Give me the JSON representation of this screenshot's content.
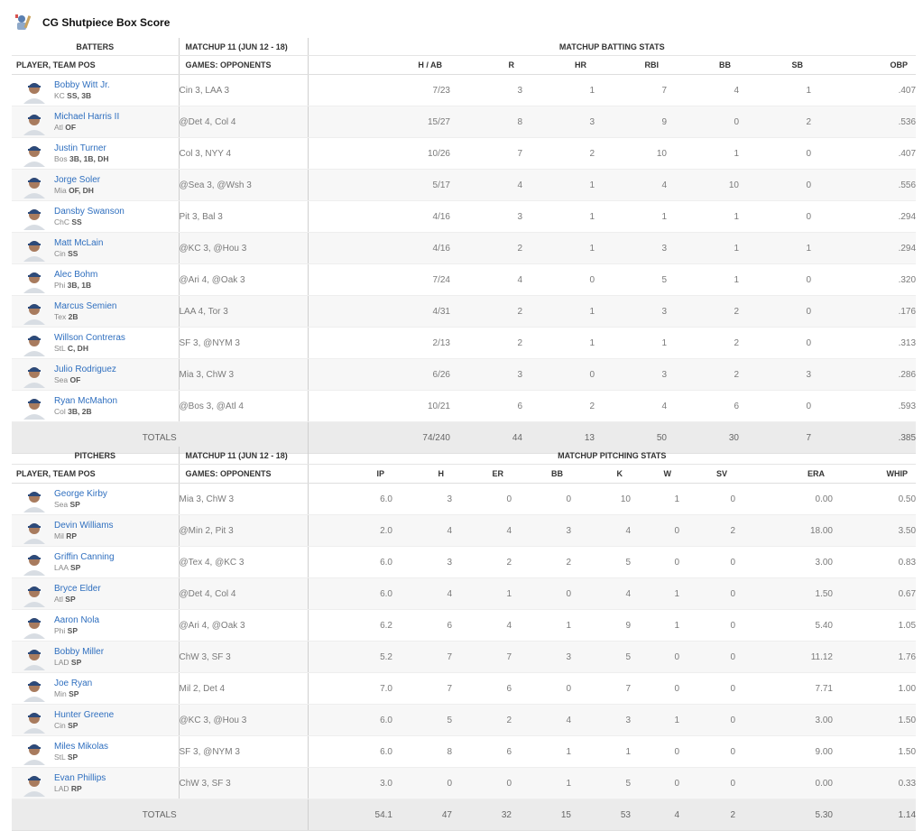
{
  "header": {
    "team_name": "CG Shutpiece Box Score",
    "logo_icon": "team-logo-icon"
  },
  "batting": {
    "group_left": "BATTERS",
    "group_mid": "MATCHUP 11 (JUN 12 - 18)",
    "group_right": "MATCHUP BATTING STATS",
    "col_player": "PLAYER, TEAM POS",
    "col_opp": "GAMES: OPPONENTS",
    "stat_headers": [
      "H / AB",
      "R",
      "HR",
      "RBI",
      "BB",
      "SB",
      "OBP"
    ],
    "rows": [
      {
        "name": "Bobby Witt Jr.",
        "team": "KC",
        "pos": "SS, 3B",
        "opp": "Cin 3, LAA 3",
        "stats": [
          "7/23",
          "3",
          "1",
          "7",
          "4",
          "1",
          ".407"
        ]
      },
      {
        "name": "Michael Harris II",
        "team": "Atl",
        "pos": "OF",
        "opp": "@Det 4, Col 4",
        "stats": [
          "15/27",
          "8",
          "3",
          "9",
          "0",
          "2",
          ".536"
        ]
      },
      {
        "name": "Justin Turner",
        "team": "Bos",
        "pos": "3B, 1B, DH",
        "opp": "Col 3, NYY 4",
        "stats": [
          "10/26",
          "7",
          "2",
          "10",
          "1",
          "0",
          ".407"
        ]
      },
      {
        "name": "Jorge Soler",
        "team": "Mia",
        "pos": "OF, DH",
        "opp": "@Sea 3, @Wsh 3",
        "stats": [
          "5/17",
          "4",
          "1",
          "4",
          "10",
          "0",
          ".556"
        ]
      },
      {
        "name": "Dansby Swanson",
        "team": "ChC",
        "pos": "SS",
        "opp": "Pit 3, Bal 3",
        "stats": [
          "4/16",
          "3",
          "1",
          "1",
          "1",
          "0",
          ".294"
        ]
      },
      {
        "name": "Matt McLain",
        "team": "Cin",
        "pos": "SS",
        "opp": "@KC 3, @Hou 3",
        "stats": [
          "4/16",
          "2",
          "1",
          "3",
          "1",
          "1",
          ".294"
        ]
      },
      {
        "name": "Alec Bohm",
        "team": "Phi",
        "pos": "3B, 1B",
        "opp": "@Ari 4, @Oak 3",
        "stats": [
          "7/24",
          "4",
          "0",
          "5",
          "1",
          "0",
          ".320"
        ]
      },
      {
        "name": "Marcus Semien",
        "team": "Tex",
        "pos": "2B",
        "opp": "LAA 4, Tor 3",
        "stats": [
          "4/31",
          "2",
          "1",
          "3",
          "2",
          "0",
          ".176"
        ]
      },
      {
        "name": "Willson Contreras",
        "team": "StL",
        "pos": "C, DH",
        "opp": "SF 3, @NYM 3",
        "stats": [
          "2/13",
          "2",
          "1",
          "1",
          "2",
          "0",
          ".313"
        ]
      },
      {
        "name": "Julio Rodriguez",
        "team": "Sea",
        "pos": "OF",
        "opp": "Mia 3, ChW 3",
        "stats": [
          "6/26",
          "3",
          "0",
          "3",
          "2",
          "3",
          ".286"
        ]
      },
      {
        "name": "Ryan McMahon",
        "team": "Col",
        "pos": "3B, 2B",
        "opp": "@Bos 3, @Atl 4",
        "stats": [
          "10/21",
          "6",
          "2",
          "4",
          "6",
          "0",
          ".593"
        ]
      }
    ],
    "totals_label": "TOTALS",
    "totals": [
      "74/240",
      "44",
      "13",
      "50",
      "30",
      "7",
      ".385"
    ]
  },
  "pitching": {
    "group_left": "PITCHERS",
    "group_mid": "MATCHUP 11 (JUN 12 - 18)",
    "group_right": "MATCHUP PITCHING STATS",
    "col_player": "PLAYER, TEAM POS",
    "col_opp": "GAMES: OPPONENTS",
    "stat_headers": [
      "IP",
      "H",
      "ER",
      "BB",
      "K",
      "W",
      "SV",
      "ERA",
      "WHIP"
    ],
    "rows": [
      {
        "name": "George Kirby",
        "team": "Sea",
        "pos": "SP",
        "opp": "Mia 3, ChW 3",
        "stats": [
          "6.0",
          "3",
          "0",
          "0",
          "10",
          "1",
          "0",
          "0.00",
          "0.50"
        ]
      },
      {
        "name": "Devin Williams",
        "team": "Mil",
        "pos": "RP",
        "opp": "@Min 2, Pit 3",
        "stats": [
          "2.0",
          "4",
          "4",
          "3",
          "4",
          "0",
          "2",
          "18.00",
          "3.50"
        ]
      },
      {
        "name": "Griffin Canning",
        "team": "LAA",
        "pos": "SP",
        "opp": "@Tex 4, @KC 3",
        "stats": [
          "6.0",
          "3",
          "2",
          "2",
          "5",
          "0",
          "0",
          "3.00",
          "0.83"
        ]
      },
      {
        "name": "Bryce Elder",
        "team": "Atl",
        "pos": "SP",
        "opp": "@Det 4, Col 4",
        "stats": [
          "6.0",
          "4",
          "1",
          "0",
          "4",
          "1",
          "0",
          "1.50",
          "0.67"
        ]
      },
      {
        "name": "Aaron Nola",
        "team": "Phi",
        "pos": "SP",
        "opp": "@Ari 4, @Oak 3",
        "stats": [
          "6.2",
          "6",
          "4",
          "1",
          "9",
          "1",
          "0",
          "5.40",
          "1.05"
        ]
      },
      {
        "name": "Bobby Miller",
        "team": "LAD",
        "pos": "SP",
        "opp": "ChW 3, SF 3",
        "stats": [
          "5.2",
          "7",
          "7",
          "3",
          "5",
          "0",
          "0",
          "11.12",
          "1.76"
        ]
      },
      {
        "name": "Joe Ryan",
        "team": "Min",
        "pos": "SP",
        "opp": "Mil 2, Det 4",
        "stats": [
          "7.0",
          "7",
          "6",
          "0",
          "7",
          "0",
          "0",
          "7.71",
          "1.00"
        ]
      },
      {
        "name": "Hunter Greene",
        "team": "Cin",
        "pos": "SP",
        "opp": "@KC 3, @Hou 3",
        "stats": [
          "6.0",
          "5",
          "2",
          "4",
          "3",
          "1",
          "0",
          "3.00",
          "1.50"
        ]
      },
      {
        "name": "Miles Mikolas",
        "team": "StL",
        "pos": "SP",
        "opp": "SF 3, @NYM 3",
        "stats": [
          "6.0",
          "8",
          "6",
          "1",
          "1",
          "0",
          "0",
          "9.00",
          "1.50"
        ]
      },
      {
        "name": "Evan Phillips",
        "team": "LAD",
        "pos": "RP",
        "opp": "ChW 3, SF 3",
        "stats": [
          "3.0",
          "0",
          "0",
          "1",
          "5",
          "0",
          "0",
          "0.00",
          "0.33"
        ]
      }
    ],
    "totals_label": "TOTALS",
    "totals": [
      "54.1",
      "47",
      "32",
      "15",
      "53",
      "4",
      "2",
      "5.30",
      "1.14"
    ]
  },
  "colors": {
    "link": "#2f6fbf",
    "stripe": "#f7f7f7",
    "totals_bg": "#ebebeb",
    "text_muted": "#7a7a7a"
  }
}
